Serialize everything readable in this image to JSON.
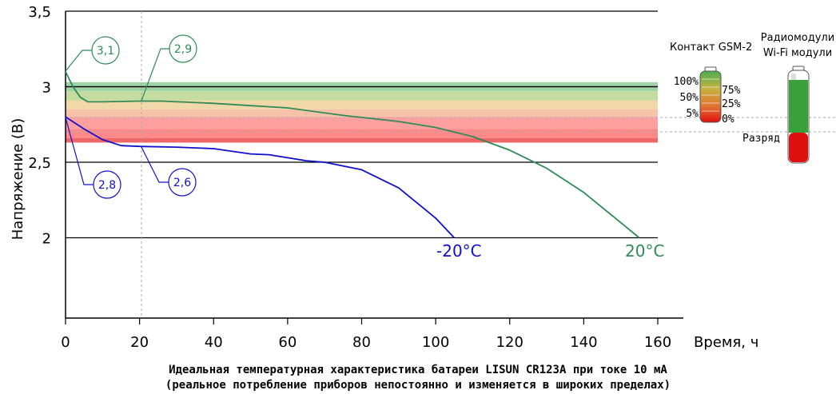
{
  "chart_data": {
    "type": "line",
    "xlabel": "Время, ч",
    "ylabel": "Напряжение (В)",
    "xlim": [
      0,
      160
    ],
    "ylim": [
      1.5,
      3.5
    ],
    "x_ticks": [
      "0",
      "20",
      "40",
      "60",
      "80",
      "100",
      "120",
      "140",
      "160"
    ],
    "y_ticks": [
      "2",
      "2,5",
      "3",
      "3,5"
    ],
    "grid": "horizontal lines at 2, 2.5, 3, 3.5",
    "series": [
      {
        "name": "20°C",
        "color": "#2e8b57",
        "x": [
          0,
          2,
          4,
          6,
          10,
          20,
          26,
          40,
          60,
          75,
          90,
          100,
          110,
          120,
          130,
          140,
          150,
          155
        ],
        "y": [
          3.1,
          3.0,
          2.93,
          2.9,
          2.9,
          2.905,
          2.905,
          2.89,
          2.86,
          2.81,
          2.77,
          2.73,
          2.67,
          2.58,
          2.46,
          2.3,
          2.1,
          2.0
        ]
      },
      {
        "name": "-20°C",
        "color": "#1010cc",
        "x": [
          0,
          5,
          10,
          15,
          20,
          30,
          40,
          50,
          55,
          65,
          70,
          80,
          90,
          100,
          105
        ],
        "y": [
          2.8,
          2.72,
          2.65,
          2.61,
          2.605,
          2.6,
          2.59,
          2.555,
          2.55,
          2.51,
          2.5,
          2.45,
          2.33,
          2.13,
          2.0
        ]
      }
    ],
    "annotations": [
      "3,1",
      "2,9",
      "2,8",
      "2,6"
    ],
    "bands": [
      {
        "from": 2.97,
        "to": 3.03,
        "color": "#9fd4a6"
      },
      {
        "from": 2.91,
        "to": 2.97,
        "color": "#c5dca0"
      },
      {
        "from": 2.85,
        "to": 2.91,
        "color": "#f0d8a8"
      },
      {
        "from": 2.8,
        "to": 2.85,
        "color": "#f8c2a8"
      },
      {
        "from": 2.72,
        "to": 2.8,
        "color": "#ffa0a0"
      },
      {
        "from": 2.66,
        "to": 2.72,
        "color": "#ff8888"
      },
      {
        "from": 2.63,
        "to": 2.66,
        "color": "#ee6666"
      }
    ]
  },
  "legend": {
    "gsm_title": "Контакт GSM-2",
    "gsm_levels_left": [
      "100%",
      "50%",
      "5%"
    ],
    "gsm_levels_right": [
      "75%",
      "25%",
      "0%"
    ],
    "radio_title_1": "Радиомодули",
    "radio_title_2": "Wi-Fi модули",
    "discharge_label": "Разряд"
  },
  "caption": {
    "line1": "Идеальная температурная характеристика батареи LISUN CR123A при токе 10 мА",
    "line2": "(реальное потребление приборов непостоянно и изменяется в широких пределах)"
  }
}
